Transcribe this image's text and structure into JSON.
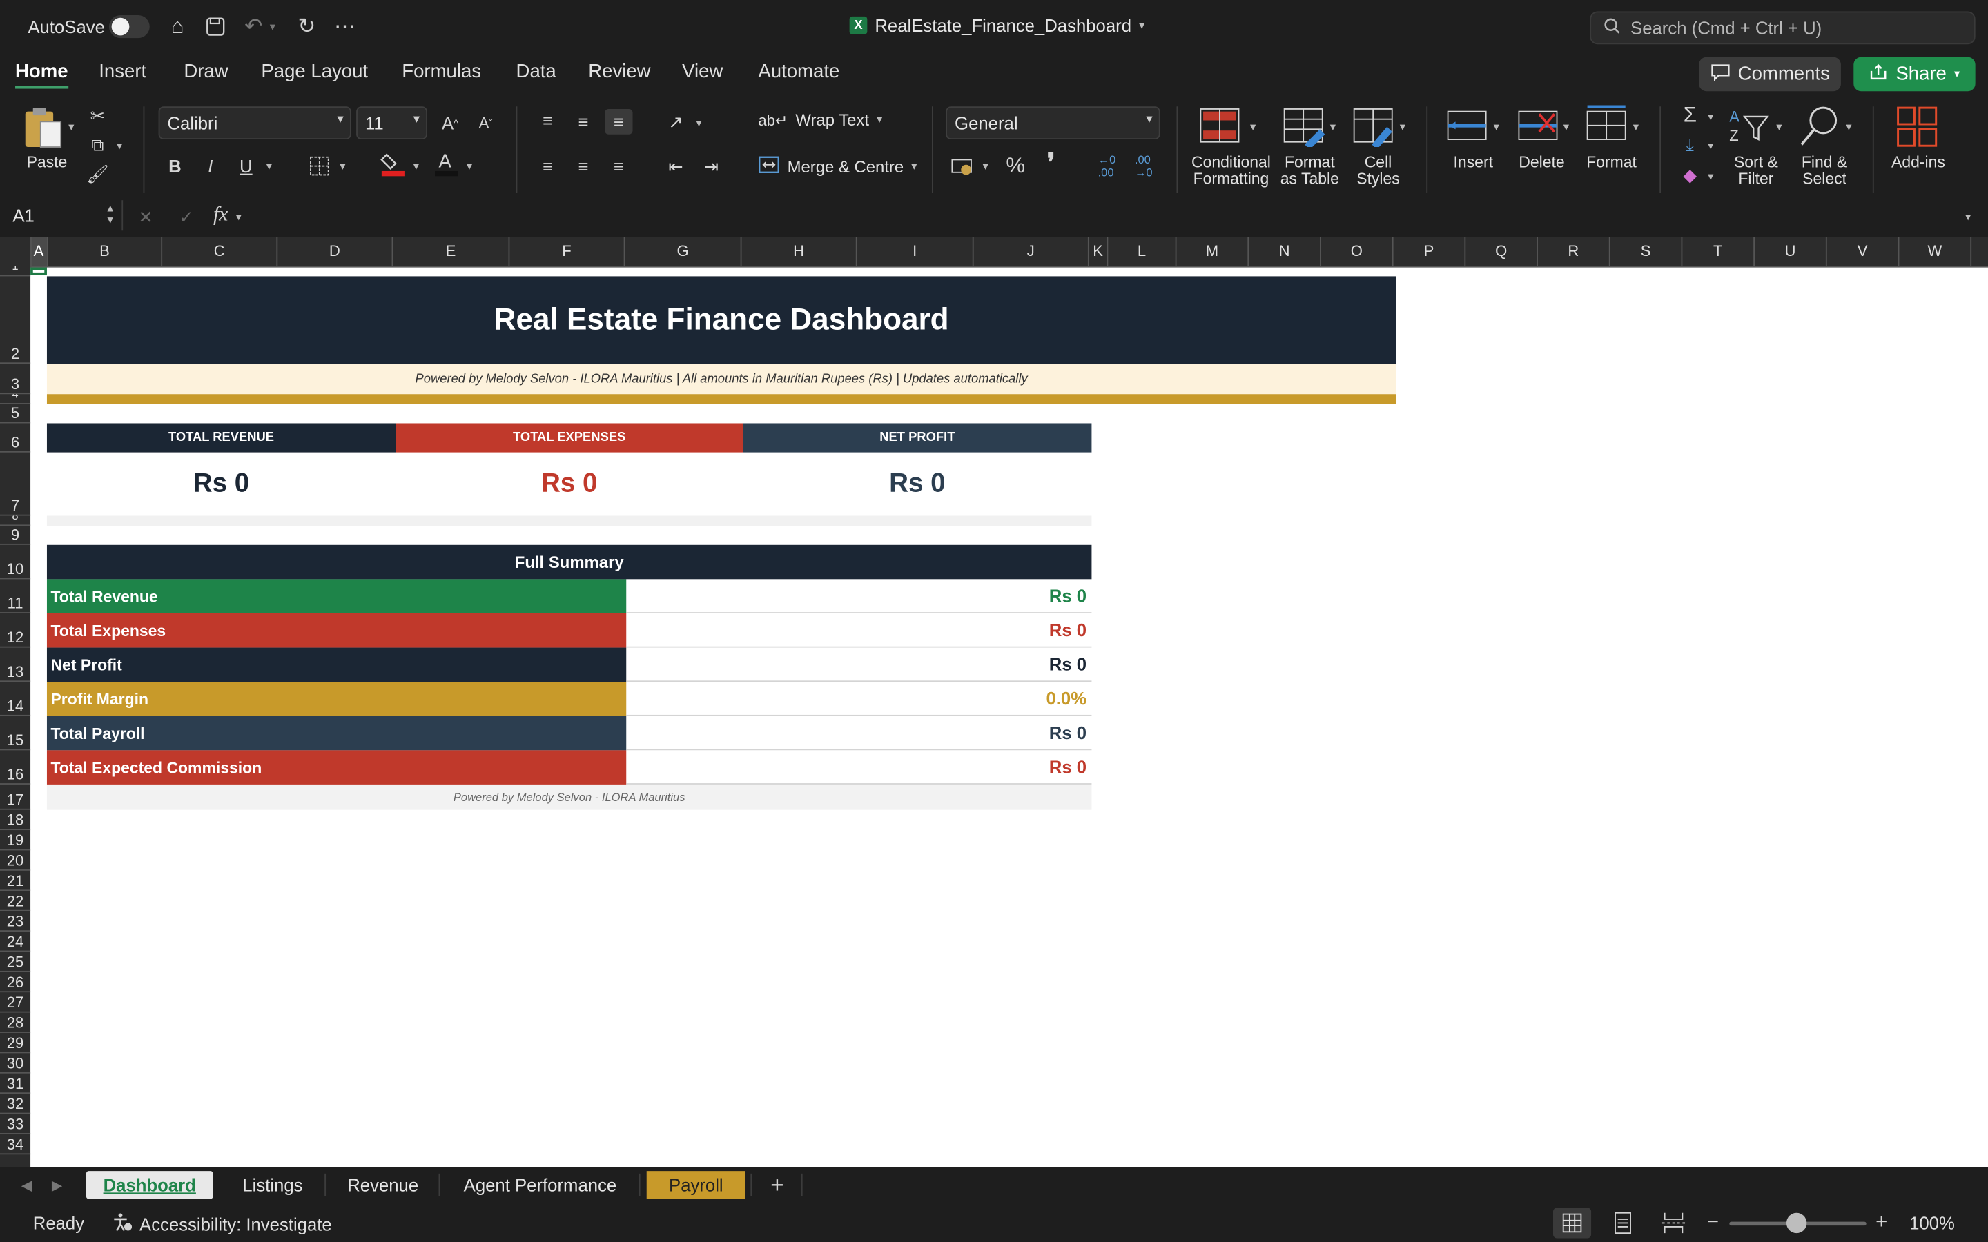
{
  "titlebar": {
    "autosave_label": "AutoSave",
    "doc_title": "RealEstate_Finance_Dashboard",
    "search_placeholder": "Search (Cmd + Ctrl + U)"
  },
  "ribbon_tabs": [
    "Home",
    "Insert",
    "Draw",
    "Page Layout",
    "Formulas",
    "Data",
    "Review",
    "View",
    "Automate"
  ],
  "ribbon_actions": {
    "comments": "Comments",
    "share": "Share"
  },
  "ribbon": {
    "paste": "Paste",
    "font_name": "Calibri",
    "font_size": "11",
    "wrap_text": "Wrap Text",
    "merge_centre": "Merge & Centre",
    "number_format": "General",
    "cond_formatting_1": "Conditional",
    "cond_formatting_2": "Formatting",
    "format_table_1": "Format",
    "format_table_2": "as Table",
    "cell_styles_1": "Cell",
    "cell_styles_2": "Styles",
    "insert": "Insert",
    "delete": "Delete",
    "format": "Format",
    "sort_filter_1": "Sort &",
    "sort_filter_2": "Filter",
    "find_select_1": "Find &",
    "find_select_2": "Select",
    "addins": "Add-ins"
  },
  "formula_bar": {
    "name_box": "A1",
    "fx": "fx",
    "content": ""
  },
  "columns": [
    "A",
    "B",
    "C",
    "D",
    "E",
    "F",
    "G",
    "H",
    "I",
    "J",
    "K",
    "L",
    "M",
    "N",
    "O",
    "P",
    "Q",
    "R",
    "S",
    "T",
    "U",
    "V",
    "W"
  ],
  "rows": [
    "1",
    "2",
    "3",
    "4",
    "5",
    "6",
    "7",
    "8",
    "9",
    "10",
    "11",
    "12",
    "13",
    "14",
    "15",
    "16",
    "17",
    "18",
    "19",
    "20",
    "21",
    "22",
    "23",
    "24",
    "25",
    "26",
    "27",
    "28",
    "29",
    "30",
    "31",
    "32",
    "33",
    "34"
  ],
  "sheet": {
    "title": "Real Estate Finance Dashboard",
    "subtitle": "Powered by Melody Selvon  -  ILORA Mauritius  |  All amounts in Mauritian Rupees (Rs)  |  Updates automatically",
    "kpis": [
      {
        "label": "TOTAL REVENUE",
        "value": "Rs 0",
        "header_color": "#1b2634",
        "value_color": "#1b2634"
      },
      {
        "label": "TOTAL EXPENSES",
        "value": "Rs 0",
        "header_color": "#c0392b",
        "value_color": "#c0392b"
      },
      {
        "label": "NET PROFIT",
        "value": "Rs 0",
        "header_color": "#2c3e50",
        "value_color": "#2c3e50"
      }
    ],
    "summary_title": "Full Summary",
    "summary": [
      {
        "label": "Total Revenue",
        "value": "Rs 0",
        "label_bg": "#1e8449",
        "value_color": "#1e8449"
      },
      {
        "label": "Total Expenses",
        "value": "Rs 0",
        "label_bg": "#c0392b",
        "value_color": "#c0392b"
      },
      {
        "label": "Net Profit",
        "value": "Rs 0",
        "label_bg": "#1b2634",
        "value_color": "#1b2634"
      },
      {
        "label": "Profit Margin",
        "value": "0.0%",
        "label_bg": "#c89a2a",
        "value_color": "#c89a2a"
      },
      {
        "label": "Total Payroll",
        "value": "Rs 0",
        "label_bg": "#2c3e50",
        "value_color": "#2c3e50"
      },
      {
        "label": "Total Expected Commission",
        "value": "Rs 0",
        "label_bg": "#c0392b",
        "value_color": "#c0392b"
      }
    ],
    "footer": "Powered by Melody Selvon  -  ILORA Mauritius"
  },
  "sheet_tabs": [
    "Dashboard",
    "Listings",
    "Revenue",
    "Agent Performance",
    "Payroll"
  ],
  "status": {
    "ready": "Ready",
    "accessibility": "Accessibility: Investigate",
    "zoom": "100%"
  }
}
